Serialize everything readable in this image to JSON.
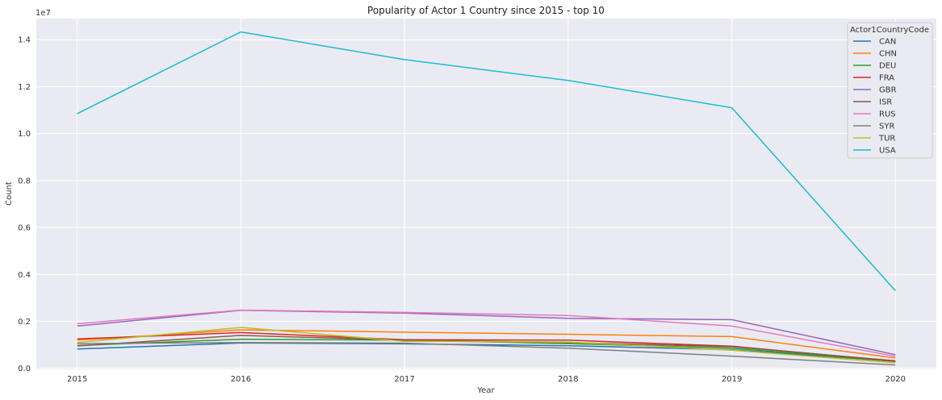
{
  "chart_data": {
    "type": "line",
    "title": "Popularity of Actor 1 Country since 2015 - top 10",
    "xlabel": "Year",
    "ylabel": "Count",
    "y_offset_label": "1e7",
    "x": [
      2015,
      2016,
      2017,
      2018,
      2019,
      2020
    ],
    "xlim": [
      2014.75,
      2020.25
    ],
    "ylim": [
      -45000,
      14900000
    ],
    "y_ticks": [
      0.0,
      0.2,
      0.4,
      0.6,
      0.8,
      1.0,
      1.2,
      1.4
    ],
    "y_tick_labels": [
      "0.0",
      "0.2",
      "0.4",
      "0.6",
      "0.8",
      "1.0",
      "1.2",
      "1.4"
    ],
    "grid": true,
    "legend": {
      "title": "Actor1CountryCode",
      "placement": "top-right"
    },
    "series": [
      {
        "name": "CAN",
        "color": "#1f77b4",
        "values": [
          820000,
          1080000,
          1040000,
          960000,
          790000,
          300000
        ]
      },
      {
        "name": "CHN",
        "color": "#ff7f0e",
        "values": [
          1200000,
          1640000,
          1540000,
          1450000,
          1350000,
          440000
        ]
      },
      {
        "name": "DEU",
        "color": "#2ca02c",
        "values": [
          970000,
          1240000,
          1200000,
          1050000,
          860000,
          290000
        ]
      },
      {
        "name": "FRA",
        "color": "#d62728",
        "values": [
          1250000,
          1520000,
          1220000,
          1200000,
          940000,
          300000
        ]
      },
      {
        "name": "GBR",
        "color": "#9467bd",
        "values": [
          1800000,
          2470000,
          2350000,
          2130000,
          2070000,
          580000
        ]
      },
      {
        "name": "ISR",
        "color": "#8c564b",
        "values": [
          950000,
          1400000,
          1200000,
          1100000,
          920000,
          320000
        ]
      },
      {
        "name": "RUS",
        "color": "#e377c2",
        "values": [
          1900000,
          2480000,
          2380000,
          2250000,
          1800000,
          510000
        ]
      },
      {
        "name": "SYR",
        "color": "#7f7f7f",
        "values": [
          1050000,
          1100000,
          1070000,
          860000,
          520000,
          140000
        ]
      },
      {
        "name": "TUR",
        "color": "#bcbd22",
        "values": [
          1100000,
          1740000,
          1150000,
          1120000,
          770000,
          230000
        ]
      },
      {
        "name": "USA",
        "color": "#17becf",
        "values": [
          10850000,
          14330000,
          13150000,
          12260000,
          11100000,
          3300000
        ]
      }
    ]
  }
}
